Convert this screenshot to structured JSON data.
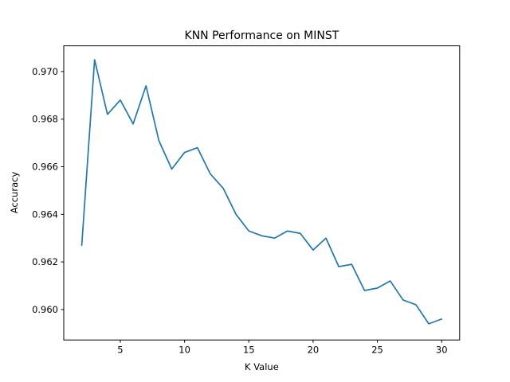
{
  "figure": {
    "background_color": "#ffffff",
    "spine_color": "#000000",
    "text_color": "#000000"
  },
  "chart_data": {
    "type": "line",
    "title": "KNN Performance on MINST",
    "xlabel": "K Value",
    "ylabel": "Accuracy",
    "line_color": "#1f77b4",
    "grid": false,
    "x": [
      2,
      3,
      4,
      5,
      6,
      7,
      8,
      9,
      10,
      11,
      12,
      13,
      14,
      15,
      16,
      17,
      18,
      19,
      20,
      21,
      22,
      23,
      24,
      25,
      26,
      27,
      28,
      29,
      30
    ],
    "y": [
      0.9627,
      0.9705,
      0.9682,
      0.9688,
      0.9678,
      0.9694,
      0.9671,
      0.9659,
      0.9666,
      0.9668,
      0.9657,
      0.9651,
      0.964,
      0.9633,
      0.9631,
      0.963,
      0.9633,
      0.9632,
      0.9625,
      0.963,
      0.9618,
      0.9619,
      0.9608,
      0.9609,
      0.9612,
      0.9604,
      0.9602,
      0.9594,
      0.9596
    ],
    "xlim": [
      0.6,
      31.4
    ],
    "ylim": [
      0.95872,
      0.97108
    ],
    "xtick_values": [
      5,
      10,
      15,
      20,
      25,
      30
    ],
    "xtick_labels": [
      "5",
      "10",
      "15",
      "20",
      "25",
      "30"
    ],
    "ytick_values": [
      0.96,
      0.962,
      0.964,
      0.966,
      0.968,
      0.97
    ],
    "ytick_labels": [
      "0.960",
      "0.962",
      "0.964",
      "0.966",
      "0.968",
      "0.970"
    ]
  }
}
